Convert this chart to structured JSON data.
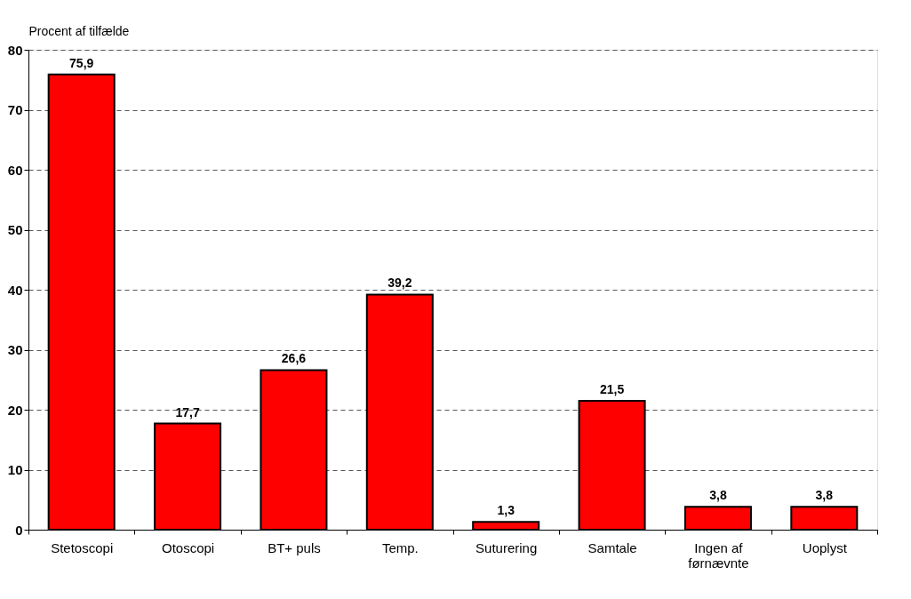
{
  "chart_data": {
    "type": "bar",
    "ylabel": "Procent af tilfælde",
    "categories": [
      "Stetoscopi",
      "Otoscopi",
      "BT+ puls",
      "Temp.",
      "Suturering",
      "Samtale",
      "Ingen af førnævnte",
      "Uoplyst"
    ],
    "values": [
      75.9,
      17.7,
      26.6,
      39.2,
      1.3,
      21.5,
      3.8,
      3.8
    ],
    "value_labels": [
      "75,9",
      "17,7",
      "26,6",
      "39,2",
      "1,3",
      "21,5",
      "3,8",
      "3,8"
    ],
    "color": "#ff0000",
    "ylim": [
      0,
      80
    ],
    "yticks": [
      0,
      10,
      20,
      30,
      40,
      50,
      60,
      70,
      80
    ],
    "grid": "y"
  }
}
